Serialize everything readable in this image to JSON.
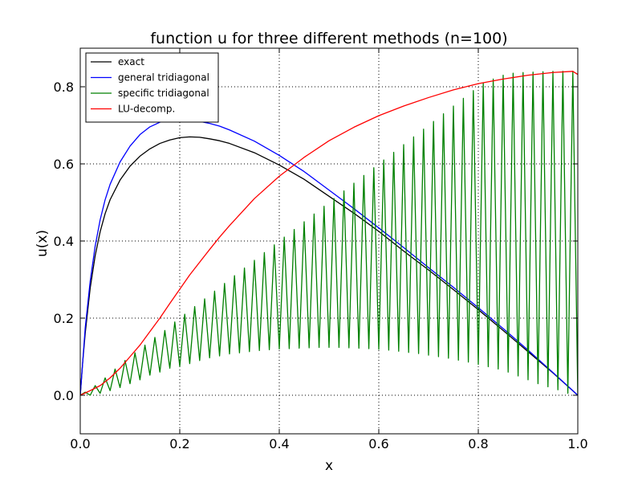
{
  "chart_data": {
    "type": "line",
    "title": "function u for three different methods (n=100)",
    "xlabel": "x",
    "ylabel": "u(x)",
    "xlim": [
      0.0,
      1.0
    ],
    "ylim": [
      -0.1,
      0.9
    ],
    "x_ticks": [
      0.0,
      0.2,
      0.4,
      0.6,
      0.8,
      1.0
    ],
    "x_tick_labels": [
      "0.0",
      "0.2",
      "0.4",
      "0.6",
      "0.8",
      "1.0"
    ],
    "y_ticks": [
      0.0,
      0.2,
      0.4,
      0.6,
      0.8
    ],
    "y_tick_labels": [
      "0.0",
      "0.2",
      "0.4",
      "0.6",
      "0.8"
    ],
    "grid": true,
    "grid_style": "dotted",
    "legend_position": "top-left",
    "series": [
      {
        "name": "exact",
        "color": "#000000",
        "x": [
          0.0,
          0.005,
          0.01,
          0.02,
          0.03,
          0.04,
          0.05,
          0.06,
          0.08,
          0.1,
          0.12,
          0.14,
          0.16,
          0.18,
          0.2,
          0.22,
          0.24,
          0.26,
          0.28,
          0.3,
          0.35,
          0.4,
          0.45,
          0.5,
          0.55,
          0.6,
          0.65,
          0.7,
          0.75,
          0.8,
          0.85,
          0.9,
          0.95,
          1.0
        ],
        "y": [
          0.0,
          0.087,
          0.161,
          0.278,
          0.362,
          0.424,
          0.471,
          0.507,
          0.558,
          0.594,
          0.62,
          0.639,
          0.653,
          0.662,
          0.668,
          0.67,
          0.669,
          0.665,
          0.66,
          0.653,
          0.629,
          0.597,
          0.56,
          0.516,
          0.472,
          0.425,
          0.374,
          0.325,
          0.274,
          0.222,
          0.168,
          0.113,
          0.058,
          0.0
        ]
      },
      {
        "name": "general tridiagonal",
        "color": "#0000ff",
        "x": [
          0.0,
          0.01,
          0.02,
          0.03,
          0.04,
          0.05,
          0.06,
          0.08,
          0.1,
          0.12,
          0.14,
          0.16,
          0.18,
          0.2,
          0.22,
          0.24,
          0.26,
          0.28,
          0.3,
          0.35,
          0.4,
          0.45,
          0.5,
          0.55,
          0.6,
          0.65,
          0.7,
          0.75,
          0.8,
          0.85,
          0.9,
          0.95,
          1.0
        ],
        "y": [
          0.0,
          0.175,
          0.296,
          0.387,
          0.455,
          0.507,
          0.547,
          0.605,
          0.646,
          0.676,
          0.696,
          0.708,
          0.714,
          0.715,
          0.714,
          0.71,
          0.705,
          0.698,
          0.688,
          0.659,
          0.622,
          0.58,
          0.532,
          0.484,
          0.434,
          0.383,
          0.331,
          0.28,
          0.227,
          0.173,
          0.117,
          0.059,
          0.0
        ]
      },
      {
        "name": "specific tridiagonal",
        "color": "#008000",
        "x": [
          0.0,
          0.01,
          0.02,
          0.03,
          0.04,
          0.05,
          0.06,
          0.07,
          0.08,
          0.09,
          0.1,
          0.11,
          0.12,
          0.13,
          0.14,
          0.15,
          0.16,
          0.17,
          0.18,
          0.19,
          0.2,
          0.21,
          0.22,
          0.23,
          0.24,
          0.25,
          0.26,
          0.27,
          0.28,
          0.29,
          0.3,
          0.31,
          0.32,
          0.33,
          0.34,
          0.35,
          0.36,
          0.37,
          0.38,
          0.39,
          0.4,
          0.41,
          0.42,
          0.43,
          0.44,
          0.45,
          0.46,
          0.47,
          0.48,
          0.49,
          0.5,
          0.51,
          0.52,
          0.53,
          0.54,
          0.55,
          0.56,
          0.57,
          0.58,
          0.59,
          0.6,
          0.61,
          0.62,
          0.63,
          0.64,
          0.65,
          0.66,
          0.67,
          0.68,
          0.69,
          0.7,
          0.71,
          0.72,
          0.73,
          0.74,
          0.75,
          0.76,
          0.77,
          0.78,
          0.79,
          0.8,
          0.81,
          0.82,
          0.83,
          0.84,
          0.85,
          0.86,
          0.87,
          0.88,
          0.89,
          0.9,
          0.91,
          0.92,
          0.93,
          0.94,
          0.95,
          0.96,
          0.97,
          0.98,
          0.99,
          1.0
        ],
        "y": [
          0.0,
          0.008,
          0.0,
          0.025,
          0.005,
          0.045,
          0.012,
          0.068,
          0.02,
          0.09,
          0.03,
          0.11,
          0.04,
          0.13,
          0.052,
          0.15,
          0.06,
          0.168,
          0.07,
          0.19,
          0.075,
          0.21,
          0.082,
          0.23,
          0.09,
          0.25,
          0.097,
          0.27,
          0.102,
          0.29,
          0.107,
          0.31,
          0.11,
          0.33,
          0.113,
          0.35,
          0.116,
          0.37,
          0.118,
          0.39,
          0.12,
          0.41,
          0.121,
          0.43,
          0.122,
          0.45,
          0.123,
          0.47,
          0.124,
          0.49,
          0.124,
          0.51,
          0.124,
          0.53,
          0.123,
          0.55,
          0.122,
          0.57,
          0.121,
          0.59,
          0.119,
          0.61,
          0.117,
          0.63,
          0.114,
          0.65,
          0.111,
          0.67,
          0.108,
          0.69,
          0.104,
          0.71,
          0.1,
          0.73,
          0.096,
          0.75,
          0.091,
          0.77,
          0.086,
          0.79,
          0.08,
          0.81,
          0.074,
          0.82,
          0.068,
          0.83,
          0.06,
          0.835,
          0.05,
          0.837,
          0.04,
          0.838,
          0.03,
          0.839,
          0.022,
          0.84,
          0.014,
          0.84,
          0.005,
          0.84,
          0.0
        ]
      },
      {
        "name": "LU-decomp.",
        "color": "#ff0000",
        "x": [
          0.0,
          0.02,
          0.04,
          0.06,
          0.08,
          0.1,
          0.12,
          0.14,
          0.16,
          0.18,
          0.2,
          0.22,
          0.24,
          0.26,
          0.28,
          0.3,
          0.35,
          0.4,
          0.45,
          0.5,
          0.55,
          0.6,
          0.65,
          0.7,
          0.75,
          0.8,
          0.85,
          0.9,
          0.95,
          0.99,
          1.0
        ],
        "y": [
          0.0,
          0.012,
          0.025,
          0.045,
          0.07,
          0.1,
          0.13,
          0.165,
          0.2,
          0.238,
          0.275,
          0.312,
          0.345,
          0.378,
          0.41,
          0.44,
          0.51,
          0.568,
          0.617,
          0.66,
          0.695,
          0.725,
          0.75,
          0.772,
          0.792,
          0.808,
          0.82,
          0.83,
          0.837,
          0.84,
          0.832
        ]
      }
    ]
  }
}
